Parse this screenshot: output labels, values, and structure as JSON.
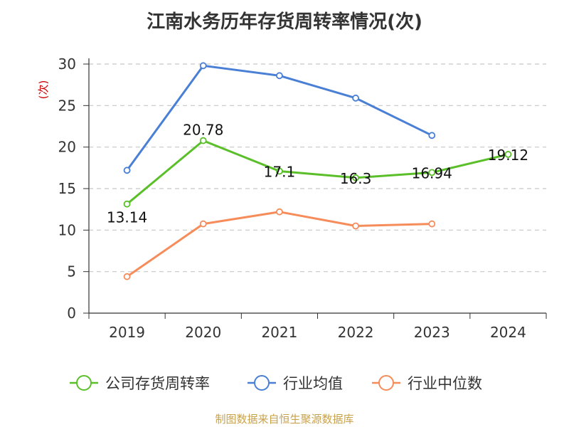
{
  "chart_data": {
    "type": "line",
    "title": "江南水务历年存货周转率情况(次)",
    "ylabel": "(次)",
    "categories": [
      "2019",
      "2020",
      "2021",
      "2022",
      "2023",
      "2024"
    ],
    "ylim": [
      0,
      30
    ],
    "yticks": [
      "0",
      "5",
      "10",
      "15",
      "20",
      "25",
      "30"
    ],
    "grid": true,
    "legend_position": "bottom",
    "series": [
      {
        "name": "公司存货周转率",
        "color": "#5bbf2a",
        "values": [
          13.14,
          20.78,
          17.1,
          16.3,
          16.94,
          19.12
        ],
        "labels": [
          "13.14",
          "20.78",
          "17.1",
          "16.3",
          "16.94",
          "19.12"
        ]
      },
      {
        "name": "行业均值",
        "color": "#4a7fd6",
        "values": [
          17.2,
          29.8,
          28.6,
          25.9,
          21.4,
          null
        ]
      },
      {
        "name": "行业中位数",
        "color": "#f58c5a",
        "values": [
          4.4,
          10.75,
          12.2,
          10.5,
          10.75,
          null
        ]
      }
    ]
  },
  "source": "制图数据来自恒生聚源数据库"
}
